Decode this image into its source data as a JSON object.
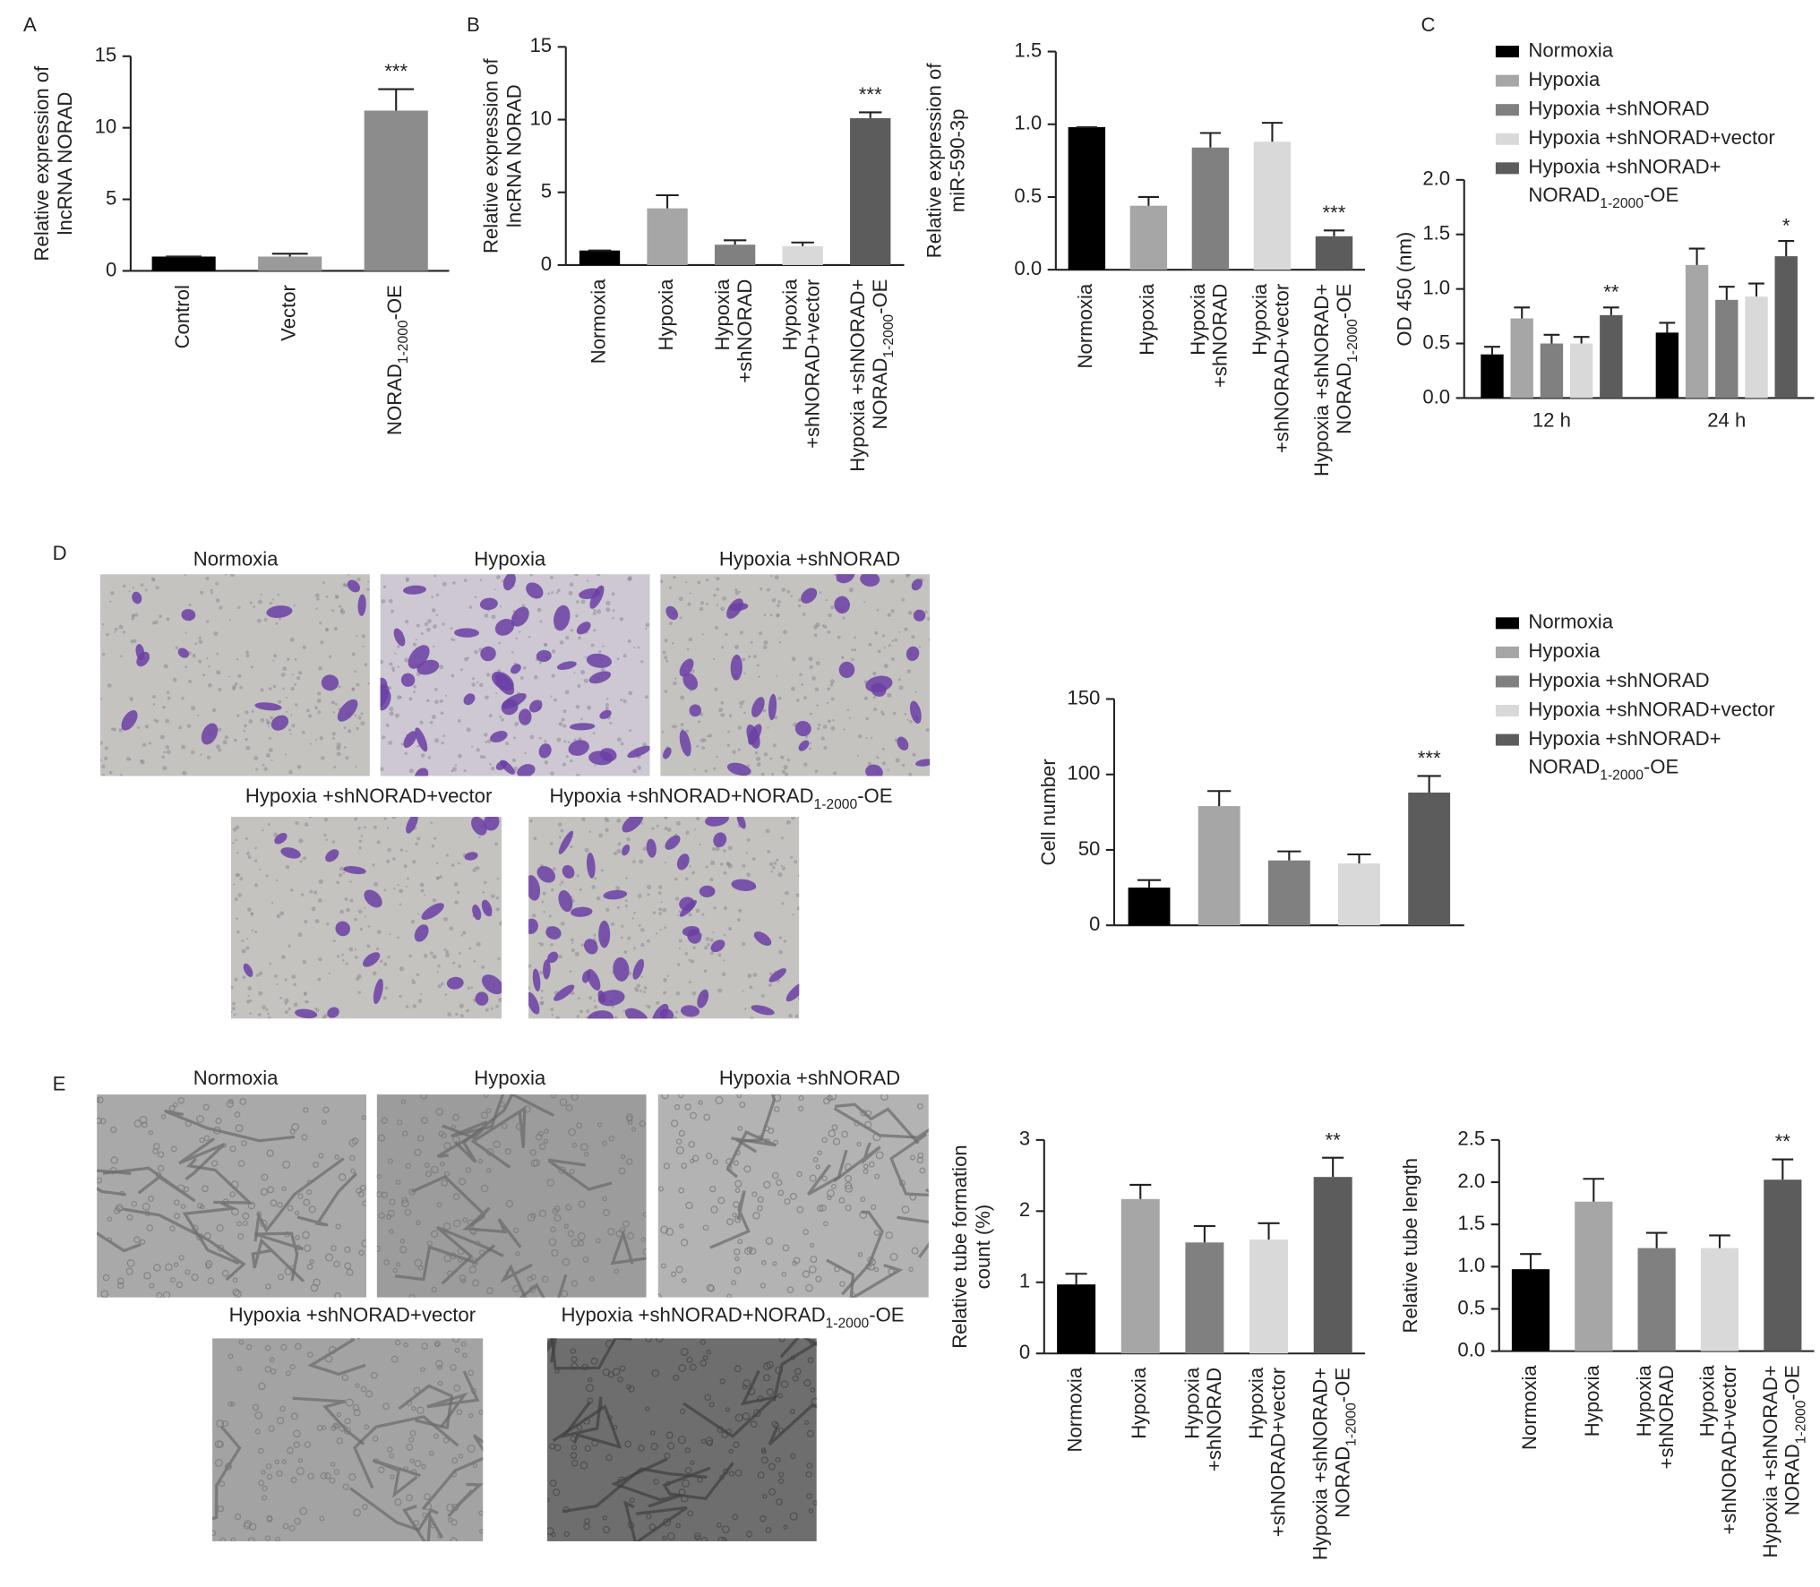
{
  "panel_labels": [
    "A",
    "B",
    "C",
    "D",
    "E"
  ],
  "image_panels": [
    {
      "captions": [
        [
          "Normoxia"
        ],
        [
          "Hypoxia"
        ],
        [
          "Hypoxia +shNORAD"
        ],
        [
          "Hypoxia +shNORAD+vector"
        ],
        [
          "Hypoxia +shNORAD+NORAD",
          "1-2000",
          "-OE"
        ]
      ]
    },
    {
      "captions": [
        [
          "Normoxia"
        ],
        [
          "Hypoxia"
        ],
        [
          "Hypoxia +shNORAD"
        ],
        [
          "Hypoxia +shNORAD+vector"
        ],
        [
          "Hypoxia +shNORAD+NORAD",
          "1-2000",
          "-OE"
        ]
      ]
    }
  ],
  "chart_data": [
    {
      "type": "bar",
      "ylabel": [
        "Relative expression of",
        "lncRNA NORAD"
      ],
      "categories": [
        [
          "Control"
        ],
        [
          "Vector"
        ],
        [
          [
            "NORAD",
            "1-2000",
            "-OE"
          ]
        ]
      ],
      "values": [
        1,
        1,
        11.2
      ],
      "errors": [
        0,
        0.2,
        1.5
      ],
      "colors": [
        "#000000",
        "#9a9a9a",
        "#8c8c8c"
      ],
      "ylim": [
        0,
        15
      ],
      "yticks": [
        0,
        5,
        10,
        15
      ],
      "annotations": [
        {
          "index": 2,
          "text": "***"
        }
      ]
    },
    {
      "type": "bar",
      "ylabel": [
        "Relative expression of",
        "lncRNA NORAD"
      ],
      "categories": [
        [
          "Normoxia"
        ],
        [
          "Hypoxia"
        ],
        [
          "Hypoxia",
          "+shNORAD"
        ],
        [
          "Hypoxia",
          "+shNORAD+vector"
        ],
        [
          "Hypoxia +shNORAD+",
          [
            "NORAD",
            "1-2000",
            "-OE"
          ]
        ]
      ],
      "values": [
        1,
        3.9,
        1.4,
        1.3,
        10.1
      ],
      "errors": [
        0,
        0.9,
        0.3,
        0.25,
        0.4
      ],
      "colors": [
        "#000000",
        "#a6a6a6",
        "#808080",
        "#d9d9d9",
        "#5c5c5c"
      ],
      "ylim": [
        0,
        15
      ],
      "yticks": [
        0,
        5,
        10,
        15
      ],
      "annotations": [
        {
          "index": 4,
          "text": "***"
        }
      ]
    },
    {
      "type": "bar",
      "ylabel": [
        "Relative expression of",
        "miR-590-3p"
      ],
      "categories": [
        [
          "Normoxia"
        ],
        [
          "Hypoxia"
        ],
        [
          "Hypoxia",
          "+shNORAD"
        ],
        [
          "Hypoxia",
          "+shNORAD+vector"
        ],
        [
          "Hypoxia +shNORAD+",
          [
            "NORAD",
            "1-2000",
            "-OE"
          ]
        ]
      ],
      "values": [
        0.98,
        0.44,
        0.84,
        0.88,
        0.23
      ],
      "errors": [
        0,
        0.06,
        0.1,
        0.13,
        0.04
      ],
      "colors": [
        "#000000",
        "#a6a6a6",
        "#808080",
        "#d9d9d9",
        "#5c5c5c"
      ],
      "ylim": [
        0,
        1.5
      ],
      "yticks": [
        {
          "value": 0,
          "label": "0.0"
        },
        0.5,
        {
          "value": 1,
          "label": "1.0"
        },
        1.5
      ],
      "annotations": [
        {
          "index": 4,
          "text": "***"
        }
      ]
    },
    {
      "type": "grouped_bar",
      "ylabel": [
        "OD 450 (nm)"
      ],
      "legend": "top",
      "categories": [
        [
          "12 h"
        ],
        [
          "24 h"
        ]
      ],
      "series": [
        {
          "name": [
            "Normoxia"
          ],
          "color": "#000000",
          "values": [
            0.4,
            0.6
          ],
          "errors": [
            0.07,
            0.09
          ]
        },
        {
          "name": [
            "Hypoxia"
          ],
          "color": "#a6a6a6",
          "values": [
            0.73,
            1.22
          ],
          "errors": [
            0.1,
            0.15
          ]
        },
        {
          "name": [
            "Hypoxia +shNORAD"
          ],
          "color": "#808080",
          "values": [
            0.5,
            0.9
          ],
          "errors": [
            0.08,
            0.12
          ]
        },
        {
          "name": [
            "Hypoxia +shNORAD+vector"
          ],
          "color": "#d9d9d9",
          "values": [
            0.5,
            0.93
          ],
          "errors": [
            0.06,
            0.12
          ]
        },
        {
          "name": [
            "Hypoxia +shNORAD+",
            [
              "NORAD",
              "1-2000",
              "-OE"
            ]
          ],
          "color": "#5c5c5c",
          "values": [
            0.76,
            1.3
          ],
          "errors": [
            0.07,
            0.14
          ]
        }
      ],
      "ylim": [
        0,
        2
      ],
      "yticks": [
        {
          "value": 0,
          "label": "0.0"
        },
        0.5,
        {
          "value": 1,
          "label": "1.0"
        },
        1.5,
        {
          "value": 2,
          "label": "2.0"
        }
      ],
      "annotations": [
        {
          "series": 4,
          "index": 0,
          "text": "**"
        },
        {
          "series": 4,
          "index": 1,
          "text": "*"
        }
      ]
    },
    {
      "type": "bar",
      "ylabel": [
        "Cell number"
      ],
      "legend": "top-right",
      "category_labels": false,
      "categories": [
        [
          "Normoxia"
        ],
        [
          "Hypoxia"
        ],
        [
          "Hypoxia +shNORAD"
        ],
        [
          "Hypoxia +shNORAD+vector"
        ],
        [
          "Hypoxia +shNORAD+",
          [
            "NORAD",
            "1-2000",
            "-OE"
          ]
        ]
      ],
      "values": [
        25,
        79,
        43,
        41,
        88
      ],
      "errors": [
        5,
        10,
        6,
        6,
        11
      ],
      "colors": [
        "#000000",
        "#a6a6a6",
        "#808080",
        "#d9d9d9",
        "#5c5c5c"
      ],
      "ylim": [
        0,
        150
      ],
      "yticks": [
        0,
        50,
        100,
        150
      ],
      "annotations": [
        {
          "index": 4,
          "text": "***"
        }
      ]
    },
    {
      "type": "bar",
      "ylabel": [
        "Relative tube formation",
        "count (%)"
      ],
      "categories": [
        [
          "Normoxia"
        ],
        [
          "Hypoxia"
        ],
        [
          "Hypoxia",
          "+shNORAD"
        ],
        [
          "Hypoxia",
          "+shNORAD+vector"
        ],
        [
          "Hypoxia +shNORAD+",
          [
            "NORAD",
            "1-2000",
            "-OE"
          ]
        ]
      ],
      "values": [
        0.97,
        2.17,
        1.56,
        1.6,
        2.48
      ],
      "errors": [
        0.15,
        0.2,
        0.23,
        0.23,
        0.27
      ],
      "colors": [
        "#000000",
        "#a6a6a6",
        "#808080",
        "#d9d9d9",
        "#5c5c5c"
      ],
      "ylim": [
        0,
        3
      ],
      "yticks": [
        0,
        1,
        2,
        3
      ],
      "annotations": [
        {
          "index": 4,
          "text": "**"
        }
      ]
    },
    {
      "type": "bar",
      "ylabel": [
        "Relative tube length"
      ],
      "categories": [
        [
          "Normoxia"
        ],
        [
          "Hypoxia"
        ],
        [
          "Hypoxia",
          "+shNORAD"
        ],
        [
          "Hypoxia",
          "+shNORAD+vector"
        ],
        [
          "Hypoxia +shNORAD+",
          [
            "NORAD",
            "1-2000",
            "-OE"
          ]
        ]
      ],
      "values": [
        0.97,
        1.77,
        1.22,
        1.22,
        2.03
      ],
      "errors": [
        0.18,
        0.27,
        0.18,
        0.15,
        0.24
      ],
      "colors": [
        "#000000",
        "#a6a6a6",
        "#808080",
        "#d9d9d9",
        "#5c5c5c"
      ],
      "ylim": [
        0,
        2.5
      ],
      "yticks": [
        {
          "value": 0,
          "label": "0.0"
        },
        0.5,
        {
          "value": 1,
          "label": "1.0"
        },
        1.5,
        {
          "value": 2,
          "label": "2.0"
        },
        2.5
      ],
      "annotations": [
        {
          "index": 4,
          "text": "**"
        }
      ]
    }
  ]
}
